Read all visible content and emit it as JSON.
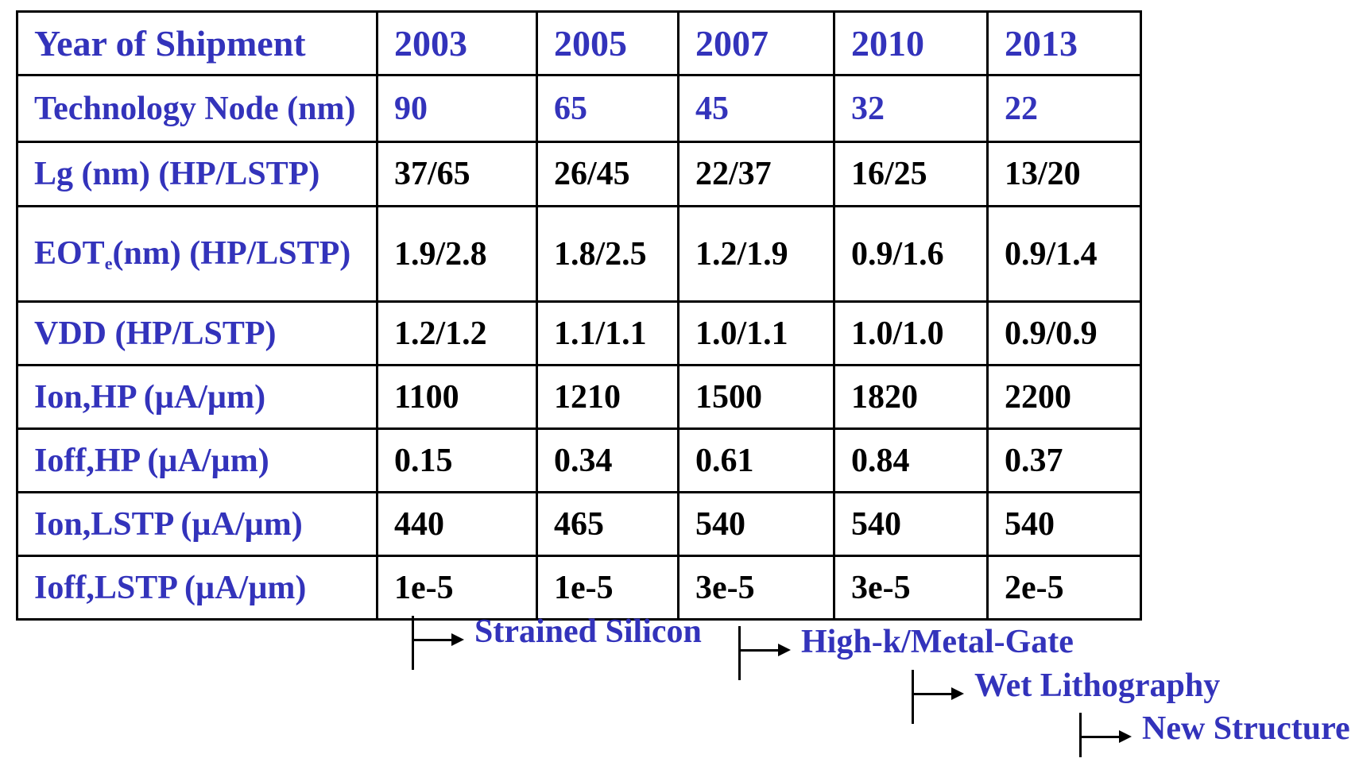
{
  "table": {
    "header": {
      "label": "Year of Shipment",
      "years": [
        "2003",
        "2005",
        "2007",
        "2010",
        "2013"
      ]
    },
    "node": {
      "label": "Technology Node (nm)",
      "values": [
        "90",
        "65",
        "45",
        "32",
        "22"
      ]
    },
    "rows": [
      {
        "label": "Lg (nm) (HP/LSTP)",
        "values": [
          "37/65",
          "26/45",
          "22/37",
          "16/25",
          "13/20"
        ]
      },
      {
        "label_pre": "EOT",
        "label_sub": "e",
        "label_post": "(nm) (HP/LSTP)",
        "values": [
          "1.9/2.8",
          "1.8/2.5",
          "1.2/1.9",
          "0.9/1.6",
          "0.9/1.4"
        ]
      },
      {
        "label": "VDD (HP/LSTP)",
        "values": [
          "1.2/1.2",
          "1.1/1.1",
          "1.0/1.1",
          "1.0/1.0",
          "0.9/0.9"
        ]
      },
      {
        "label": "Ion,HP (µA/µm)",
        "values": [
          "1100",
          "1210",
          "1500",
          "1820",
          "2200"
        ]
      },
      {
        "label": "Ioff,HP (µA/µm)",
        "values": [
          "0.15",
          "0.34",
          "0.61",
          "0.84",
          "0.37"
        ]
      },
      {
        "label": "Ion,LSTP (µA/µm)",
        "values": [
          "440",
          "465",
          "540",
          "540",
          "540"
        ]
      },
      {
        "label": "Ioff,LSTP (µA/µm)",
        "values": [
          "1e-5",
          "1e-5",
          "3e-5",
          "3e-5",
          "2e-5"
        ]
      }
    ]
  },
  "milestones": [
    {
      "label": "Strained Silicon"
    },
    {
      "label": "High-k/Metal-Gate"
    },
    {
      "label": "Wet Lithography"
    },
    {
      "label": "New Structure"
    }
  ],
  "colors": {
    "label_blue": "#3333bb",
    "value_black": "#000000"
  }
}
